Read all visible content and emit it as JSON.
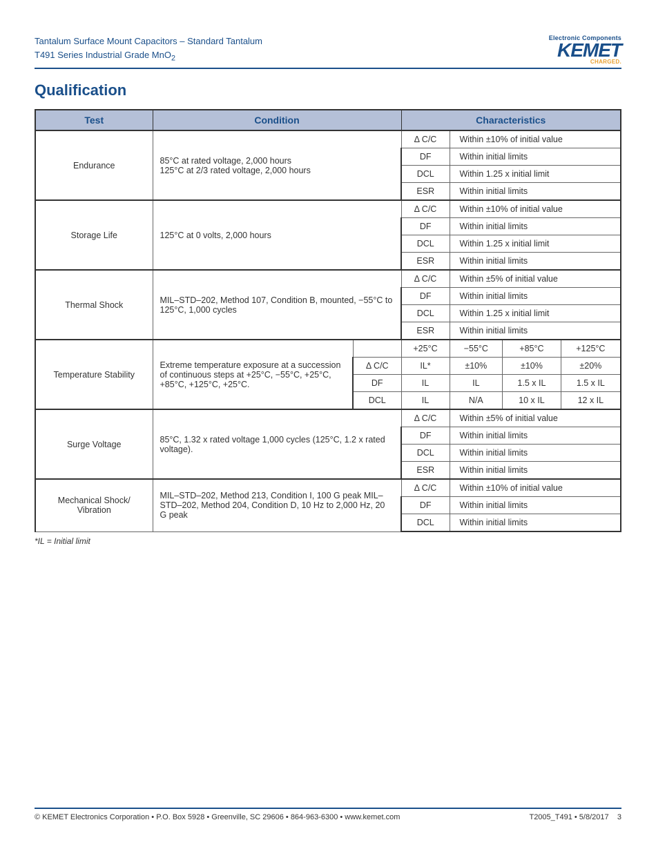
{
  "header": {
    "line1": "Tantalum Surface Mount Capacitors – Standard Tantalum",
    "line2": "T491 Series Industrial Grade MnO",
    "line2_sub": "2",
    "logo_tagline": "Electronic Components",
    "logo_name": "KEMET",
    "logo_sub": "CHARGED."
  },
  "section_title": "Qualification",
  "table": {
    "headers": {
      "test": "Test",
      "condition": "Condition",
      "characteristics": "Characteristics"
    },
    "colors": {
      "header_bg": "#b5c0d8",
      "header_text": "#1a4f8a",
      "border": "#333333"
    },
    "groups": [
      {
        "test": "Endurance",
        "condition": "85°C at rated voltage, 2,000 hours\n125°C at 2/3 rated voltage, 2,000 hours",
        "rows": [
          {
            "param": "Δ C/C",
            "value": "Within ±10% of initial value"
          },
          {
            "param": "DF",
            "value": "Within initial limits"
          },
          {
            "param": "DCL",
            "value": "Within 1.25 x initial limit"
          },
          {
            "param": "ESR",
            "value": "Within initial limits"
          }
        ]
      },
      {
        "test": "Storage Life",
        "condition": "125°C at 0 volts, 2,000 hours",
        "rows": [
          {
            "param": "Δ C/C",
            "value": "Within ±10% of initial value"
          },
          {
            "param": "DF",
            "value": "Within initial limits"
          },
          {
            "param": "DCL",
            "value": "Within 1.25 x initial limit"
          },
          {
            "param": "ESR",
            "value": "Within initial limits"
          }
        ]
      },
      {
        "test": "Thermal Shock",
        "condition": "MIL–STD–202, Method 107, Condition B, mounted, −55°C to 125°C, 1,000 cycles",
        "rows": [
          {
            "param": "Δ C/C",
            "value": "Within ±5% of initial value"
          },
          {
            "param": "DF",
            "value": "Within initial limits"
          },
          {
            "param": "DCL",
            "value": "Within 1.25 x initial limit"
          },
          {
            "param": "ESR",
            "value": "Within initial limits"
          }
        ]
      },
      {
        "test": "Temperature Stability",
        "condition": "Extreme temperature exposure at a succession of continuous steps at +25°C, −55°C, +25°C, +85°C, +125°C, +25°C.",
        "matrix": {
          "col_headers": [
            "+25°C",
            "−55°C",
            "+85°C",
            "+125°C"
          ],
          "rows": [
            {
              "param": "Δ C/C",
              "cells": [
                "IL*",
                "±10%",
                "±10%",
                "±20%"
              ]
            },
            {
              "param": "DF",
              "cells": [
                "IL",
                "IL",
                "1.5 x IL",
                "1.5 x IL"
              ]
            },
            {
              "param": "DCL",
              "cells": [
                "IL",
                "N/A",
                "10 x IL",
                "12 x IL"
              ]
            }
          ]
        }
      },
      {
        "test": "Surge Voltage",
        "condition": "85°C, 1.32 x rated voltage 1,000 cycles (125°C, 1.2 x rated voltage).",
        "rows": [
          {
            "param": "Δ C/C",
            "value": "Within ±5% of initial value"
          },
          {
            "param": "DF",
            "value": "Within initial limits"
          },
          {
            "param": "DCL",
            "value": "Within initial limits"
          },
          {
            "param": "ESR",
            "value": "Within initial limits"
          }
        ]
      },
      {
        "test": "Mechanical Shock/ Vibration",
        "condition": "MIL–STD–202, Method 213, Condition I, 100 G peak MIL–STD–202, Method 204, Condition D, 10 Hz to 2,000 Hz, 20 G peak",
        "rows": [
          {
            "param": "Δ C/C",
            "value": "Within ±10% of initial value"
          },
          {
            "param": "DF",
            "value": "Within initial limits"
          },
          {
            "param": "DCL",
            "value": "Within initial limits"
          }
        ]
      }
    ]
  },
  "footnote": "*IL = Initial limit",
  "footer": {
    "left": "© KEMET Electronics Corporation • P.O. Box 5928 • Greenville, SC 29606 • 864-963-6300 • www.kemet.com",
    "right": "T2005_T491 • 5/8/2017",
    "page": "3"
  }
}
